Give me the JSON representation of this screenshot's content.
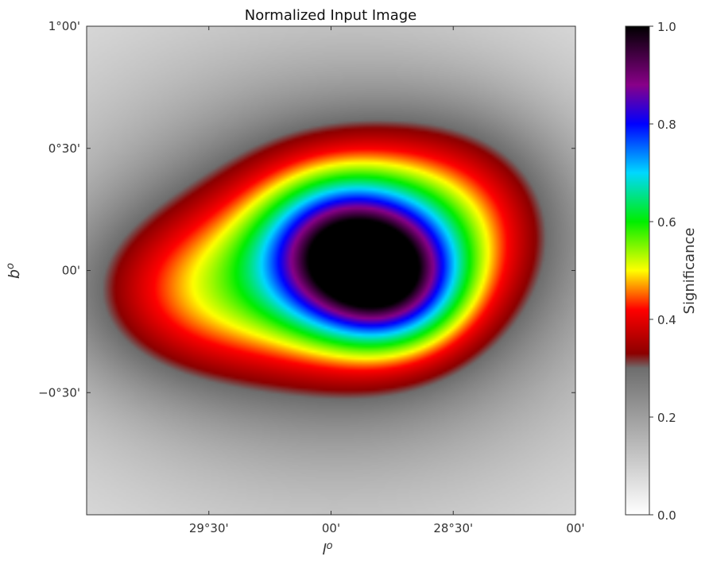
{
  "chart_data": {
    "type": "heatmap",
    "title": "Normalized Input Image",
    "xlabel": "l",
    "xlabel_superscript": "o",
    "ylabel": "b",
    "ylabel_superscript": "o",
    "xlim": [
      30.0,
      28.0
    ],
    "ylim": [
      -1.0,
      1.0
    ],
    "x_units": "degrees galactic longitude",
    "y_units": "degrees galactic latitude",
    "x_ticks": [
      {
        "value": 29.5,
        "label": "29°30'"
      },
      {
        "value": 29.0,
        "label": "00'"
      },
      {
        "value": 28.5,
        "label": "28°30'"
      },
      {
        "value": 28.0,
        "label": "00'"
      }
    ],
    "y_ticks": [
      {
        "value": 1.0,
        "label": "1°00'"
      },
      {
        "value": 0.5,
        "label": "0°30'"
      },
      {
        "value": 0.0,
        "label": "00'"
      },
      {
        "value": -0.5,
        "label": "−0°30'"
      }
    ],
    "colorbar": {
      "label": "Significance",
      "range": [
        0.0,
        1.0
      ],
      "ticks": [
        "0.0",
        "0.2",
        "0.4",
        "0.6",
        "0.8",
        "1.0"
      ],
      "colormap_stops": [
        {
          "pos": 0.0,
          "color": "#ffffff"
        },
        {
          "pos": 0.3,
          "color": "#6e6e6e"
        },
        {
          "pos": 0.33,
          "color": "#8c0000"
        },
        {
          "pos": 0.42,
          "color": "#ff0000"
        },
        {
          "pos": 0.5,
          "color": "#ffff00"
        },
        {
          "pos": 0.6,
          "color": "#00ee00"
        },
        {
          "pos": 0.7,
          "color": "#00d8ff"
        },
        {
          "pos": 0.8,
          "color": "#0000ff"
        },
        {
          "pos": 0.88,
          "color": "#880088"
        },
        {
          "pos": 1.0,
          "color": "#000000"
        }
      ]
    },
    "sources": [
      {
        "l": 28.95,
        "b": 0.08,
        "amplitude": 0.42,
        "sigma_l": 0.22,
        "sigma_b": 0.2
      },
      {
        "l": 28.75,
        "b": -0.05,
        "amplitude": 0.35,
        "sigma_l": 0.2,
        "sigma_b": 0.18
      },
      {
        "l": 28.9,
        "b": 0.05,
        "amplitude": 0.3,
        "sigma_l": 0.45,
        "sigma_b": 0.35
      },
      {
        "l": 29.6,
        "b": -0.1,
        "amplitude": 0.18,
        "sigma_l": 0.35,
        "sigma_b": 0.25
      },
      {
        "l": 28.45,
        "b": 0.25,
        "amplitude": 0.12,
        "sigma_l": 0.3,
        "sigma_b": 0.28
      },
      {
        "l": 29.0,
        "b": 0.0,
        "amplitude": 0.22,
        "sigma_l": 0.9,
        "sigma_b": 0.7
      }
    ]
  }
}
